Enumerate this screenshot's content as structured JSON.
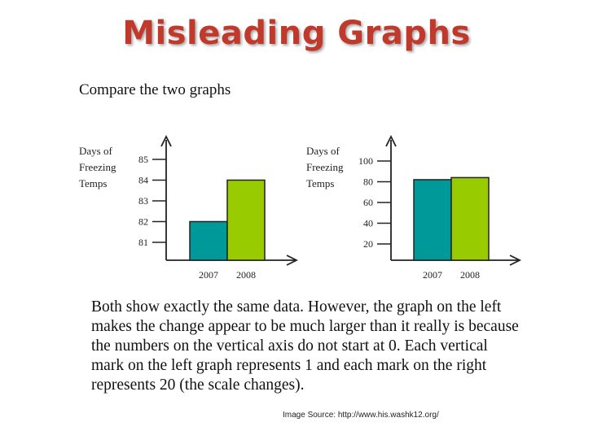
{
  "title": "Misleading Graphs",
  "subtitle": "Compare the two graphs",
  "caption_lines": [
    "Both show exactly the same data. However, the graph on the left",
    "makes the change appear to be much larger than it really is because",
    "the numbers on the vertical axis do not start at 0. Each vertical",
    "mark on the left graph represents 1 and each mark on the right",
    "represents 20 (the scale changes)."
  ],
  "source": "Image Source: http://www.his.washk12.org/",
  "colors": {
    "bar_2007": "#009999",
    "bar_2008": "#99cc00",
    "title": "#c0392b"
  },
  "chart_data": [
    {
      "type": "bar",
      "ylabel_lines": [
        "Days of",
        "Freezing",
        "Temps"
      ],
      "categories": [
        "2007",
        "2008"
      ],
      "values": [
        82,
        84
      ],
      "yticks": [
        81,
        82,
        83,
        84,
        85
      ],
      "ylim": [
        80,
        85
      ]
    },
    {
      "type": "bar",
      "ylabel_lines": [
        "Days of",
        "Freezing",
        "Temps"
      ],
      "categories": [
        "2007",
        "2008"
      ],
      "values": [
        82,
        84
      ],
      "yticks": [
        20,
        40,
        60,
        80,
        100
      ],
      "ylim": [
        0,
        100
      ]
    }
  ]
}
